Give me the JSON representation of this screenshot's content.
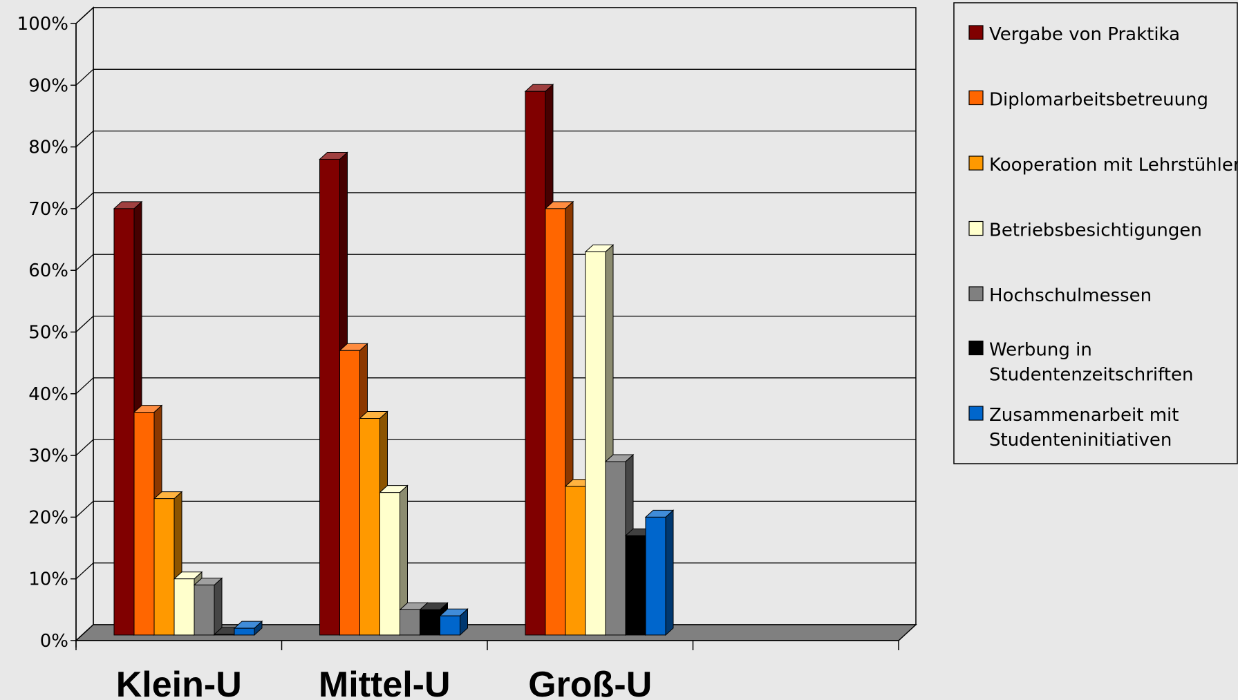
{
  "chart_data": {
    "type": "bar",
    "title": "",
    "xlabel": "",
    "ylabel": "",
    "ylim": [
      0,
      100
    ],
    "y_ticks": [
      "0%",
      "10%",
      "20%",
      "30%",
      "40%",
      "50%",
      "60%",
      "70%",
      "80%",
      "90%",
      "100%"
    ],
    "grid": true,
    "three_d": true,
    "legend_position": "top-right",
    "categories": [
      "Klein-U",
      "Mittel-U",
      "Groß-U"
    ],
    "series": [
      {
        "name": "Vergabe von Praktika",
        "color": "#800000",
        "values": [
          70,
          78,
          89
        ]
      },
      {
        "name": "Diplomarbeitsbetreuung",
        "color": "#ff6600",
        "values": [
          37,
          47,
          70
        ]
      },
      {
        "name": "Kooperation mit Lehrstühlen",
        "color": "#ff9900",
        "values": [
          23,
          36,
          25
        ]
      },
      {
        "name": "Betriebsbesichtigungen",
        "color": "#ffffcc",
        "values": [
          10,
          24,
          63
        ]
      },
      {
        "name": "Hochschulmessen",
        "color": "#808080",
        "values": [
          9,
          5,
          29
        ]
      },
      {
        "name": "Werbung in Studentenzeitschriften",
        "color": "#000000",
        "values": [
          1,
          5,
          17
        ]
      },
      {
        "name": "Zusammenarbeit mit Studenteninitiativen",
        "color": "#0066cc",
        "values": [
          2,
          4,
          20
        ]
      }
    ]
  }
}
